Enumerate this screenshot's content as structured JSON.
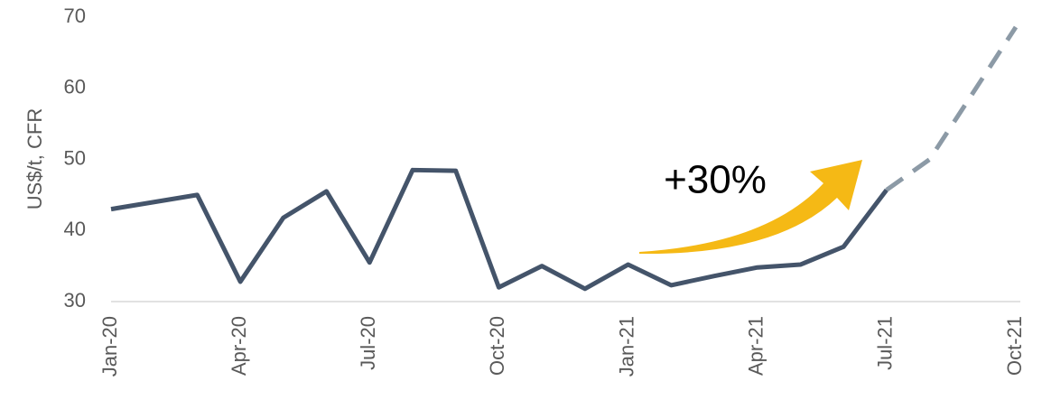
{
  "chart_data": {
    "type": "line",
    "y_label": "US$/t, CFR",
    "annotation": "+30%",
    "categories": [
      "Jan-20",
      null,
      null,
      "Apr-20",
      null,
      null,
      "Jul-20",
      null,
      null,
      "Oct-20",
      null,
      null,
      "Jan-21",
      null,
      null,
      "Apr-21",
      null,
      null,
      "Jul-21",
      null,
      null,
      "Oct-21"
    ],
    "series": [
      {
        "color": "#44546a",
        "dashed": false,
        "values": [
          43,
          44,
          45,
          32.8,
          41.8,
          45.5,
          35.5,
          48.5,
          48.4,
          32,
          35,
          31.8,
          35.2,
          32.3,
          33.6,
          34.8,
          35.2,
          37.7,
          45.7,
          null,
          null,
          null
        ]
      },
      {
        "color": "#8c9aa6",
        "dashed": true,
        "values": [
          null,
          null,
          null,
          null,
          null,
          null,
          null,
          null,
          null,
          null,
          null,
          null,
          null,
          null,
          null,
          null,
          null,
          null,
          45.7,
          50,
          59.3,
          68.6
        ]
      }
    ],
    "ylim": [
      30,
      70
    ],
    "yticks": [
      30,
      40,
      50,
      60,
      70
    ],
    "grid": false
  }
}
